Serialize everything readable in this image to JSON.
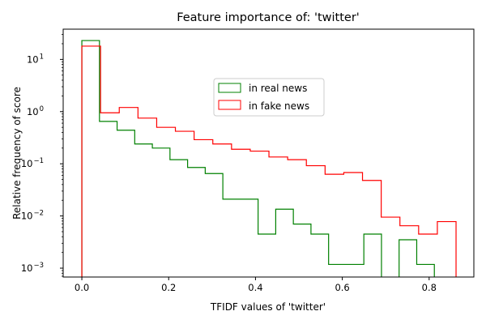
{
  "chart_data": {
    "type": "histogram",
    "title": "Feature importance of: 'twitter'",
    "xlabel": "TFIDF values of 'twitter'",
    "ylabel": "Relative frequency of score",
    "xlim": [
      -0.043,
      0.903
    ],
    "ylim_log10": [
      -3.17,
      1.58
    ],
    "yscale": "log",
    "grid": false,
    "legend_position": "upper-middle",
    "x_ticks": [
      {
        "value": 0.0,
        "label": "0.0"
      },
      {
        "value": 0.2,
        "label": "0.2"
      },
      {
        "value": 0.4,
        "label": "0.4"
      },
      {
        "value": 0.6,
        "label": "0.6"
      },
      {
        "value": 0.8,
        "label": "0.8"
      }
    ],
    "y_ticks": [
      {
        "exp": -3,
        "label": "10",
        "sup": "−3"
      },
      {
        "exp": -2,
        "label": "10",
        "sup": "−2"
      },
      {
        "exp": -1,
        "label": "10",
        "sup": "−1"
      },
      {
        "exp": 0,
        "label": "10",
        "sup": "0"
      },
      {
        "exp": 1,
        "label": "10",
        "sup": "1"
      }
    ],
    "series": [
      {
        "name": "in real news",
        "color": "#008000",
        "bin_edges": [
          0.0,
          0.0406,
          0.0812,
          0.1218,
          0.1624,
          0.203,
          0.2436,
          0.2842,
          0.3248,
          0.3654,
          0.406,
          0.4466,
          0.4872,
          0.5278,
          0.5684,
          0.609,
          0.6496,
          0.6902,
          0.7308,
          0.7714,
          0.812
        ],
        "values": [
          23,
          0.65,
          0.44,
          0.24,
          0.2,
          0.12,
          0.085,
          0.065,
          0.021,
          0.021,
          0.0045,
          0.0135,
          0.007,
          0.0045,
          0.00118,
          0.00118,
          0.0045,
          0,
          0.0035,
          0.00118
        ]
      },
      {
        "name": "in fake news",
        "color": "#ff0000",
        "bin_edges": [
          0.0,
          0.0431,
          0.0862,
          0.1293,
          0.1724,
          0.2155,
          0.2586,
          0.3017,
          0.3448,
          0.3879,
          0.431,
          0.4741,
          0.5172,
          0.5603,
          0.6034,
          0.6465,
          0.6896,
          0.7327,
          0.7758,
          0.8189,
          0.862
        ],
        "values": [
          18,
          0.95,
          1.2,
          0.75,
          0.5,
          0.42,
          0.29,
          0.24,
          0.19,
          0.175,
          0.135,
          0.12,
          0.092,
          0.063,
          0.068,
          0.048,
          0.0095,
          0.0065,
          0.0045,
          0.0078
        ]
      }
    ]
  }
}
